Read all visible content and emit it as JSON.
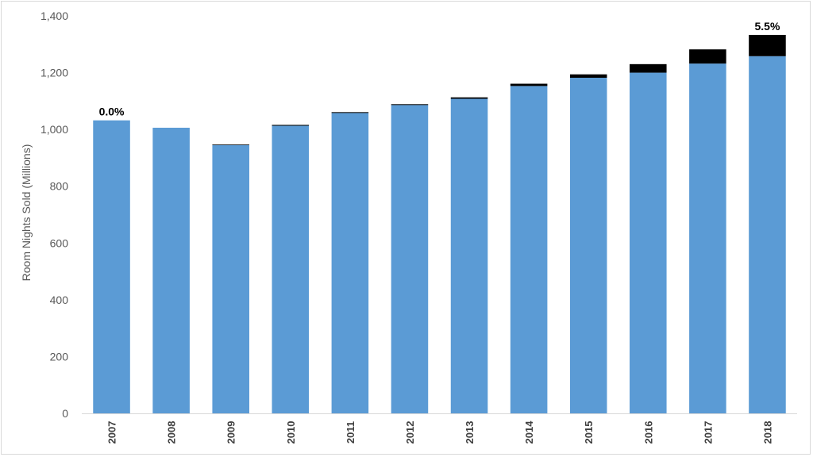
{
  "chart_data": {
    "type": "bar",
    "stacked": true,
    "title": "",
    "xlabel": "",
    "ylabel": "Room Nights Sold (Millions)",
    "ylim": [
      0,
      1400
    ],
    "y_ticks": [
      0,
      200,
      400,
      600,
      800,
      1000,
      1200,
      1400
    ],
    "y_tick_labels": [
      "0",
      "200",
      "400",
      "600",
      "800",
      "1,000",
      "1,200",
      "1,400"
    ],
    "grid": false,
    "legend": "none",
    "categories": [
      "2007",
      "2008",
      "2009",
      "2010",
      "2011",
      "2012",
      "2013",
      "2014",
      "2015",
      "2016",
      "2017",
      "2018"
    ],
    "series": [
      {
        "color": "#5b9bd5",
        "values": [
          1032,
          1006,
          945,
          1013,
          1058,
          1086,
          1108,
          1153,
          1182,
          1200,
          1232,
          1258
        ]
      },
      {
        "color": "#000000",
        "values": [
          0,
          0,
          2,
          3,
          3,
          3,
          5,
          8,
          12,
          30,
          50,
          75
        ]
      }
    ],
    "data_labels": [
      {
        "category": "2007",
        "text": "0.0%"
      },
      {
        "category": "2018",
        "text": "5.5%"
      }
    ]
  }
}
